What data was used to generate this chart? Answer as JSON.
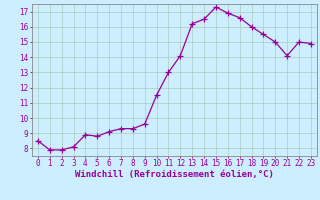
{
  "x": [
    0,
    1,
    2,
    3,
    4,
    5,
    6,
    7,
    8,
    9,
    10,
    11,
    12,
    13,
    14,
    15,
    16,
    17,
    18,
    19,
    20,
    21,
    22,
    23
  ],
  "y": [
    8.5,
    7.9,
    7.9,
    8.1,
    8.9,
    8.8,
    9.1,
    9.3,
    9.3,
    9.6,
    11.5,
    13.0,
    14.1,
    16.2,
    16.5,
    17.3,
    16.9,
    16.6,
    16.0,
    15.5,
    15.0,
    14.1,
    15.0,
    14.9
  ],
  "line_color": "#990099",
  "marker": "+",
  "markersize": 4,
  "linewidth": 0.9,
  "xlabel": "Windchill (Refroidissement éolien,°C)",
  "xlabel_fontsize": 6.5,
  "xlim": [
    -0.5,
    23.5
  ],
  "ylim": [
    7.5,
    17.5
  ],
  "yticks": [
    8,
    9,
    10,
    11,
    12,
    13,
    14,
    15,
    16,
    17
  ],
  "xticks": [
    0,
    1,
    2,
    3,
    4,
    5,
    6,
    7,
    8,
    9,
    10,
    11,
    12,
    13,
    14,
    15,
    16,
    17,
    18,
    19,
    20,
    21,
    22,
    23
  ],
  "background_color": "#cceeff",
  "grid_color": "#aaccbb",
  "tick_fontsize": 5.5,
  "spine_color": "#888888"
}
